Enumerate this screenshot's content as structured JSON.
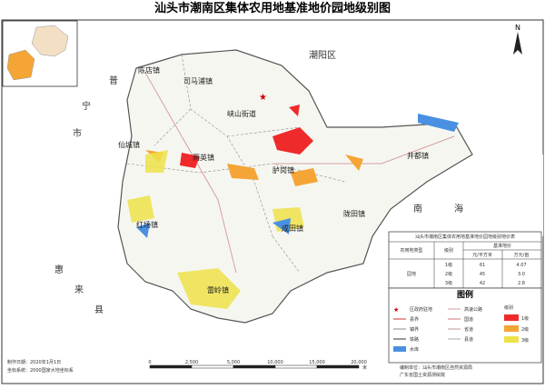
{
  "title": "汕头市潮南区集体农用地基准地价园地级别图",
  "regions": {
    "chaoyang": "潮阳区",
    "puning": [
      "普",
      "宁",
      "市"
    ],
    "huilai": [
      "惠",
      "来",
      "县"
    ],
    "sea": [
      "南",
      "海"
    ]
  },
  "towns": [
    "陈店镇",
    "司马浦镇",
    "峡山街道",
    "仙城镇",
    "两英镇",
    "胪岗镇",
    "井都镇",
    "红场镇",
    "成田镇",
    "陇田镇",
    "雷岭镇"
  ],
  "north": "N",
  "price_table": {
    "title": "汕头市潮南区集体农用地基准地价园地级别地价表",
    "headers": [
      "农用地类型",
      "级别",
      "基准地价",
      "元/平方米",
      "万元/亩"
    ],
    "land_type": "园地",
    "rows": [
      [
        "1级",
        "61",
        "4.07"
      ],
      [
        "2级",
        "45",
        "3.0"
      ],
      [
        "3级",
        "42",
        "2.8"
      ]
    ]
  },
  "legend": {
    "title": "图例",
    "items": [
      "区政府驻地",
      "县界",
      "镇界",
      "铁路",
      "水库",
      "高速公路",
      "国道",
      "省道",
      "县道"
    ],
    "level_title": "级别",
    "levels": [
      "1级",
      "2级",
      "3级"
    ]
  },
  "scale": {
    "ticks": [
      "0",
      "2,500",
      "5,000",
      "10,000",
      "15,000",
      "20,000"
    ],
    "unit": "米"
  },
  "footer_left": [
    "制作日期：2020年1月1日",
    "坐标系统：2000国家大地坐标系"
  ],
  "footer_right": [
    "编制单位：汕头市潮南区自然资源局",
    "广东省国土资源测绘院"
  ]
}
